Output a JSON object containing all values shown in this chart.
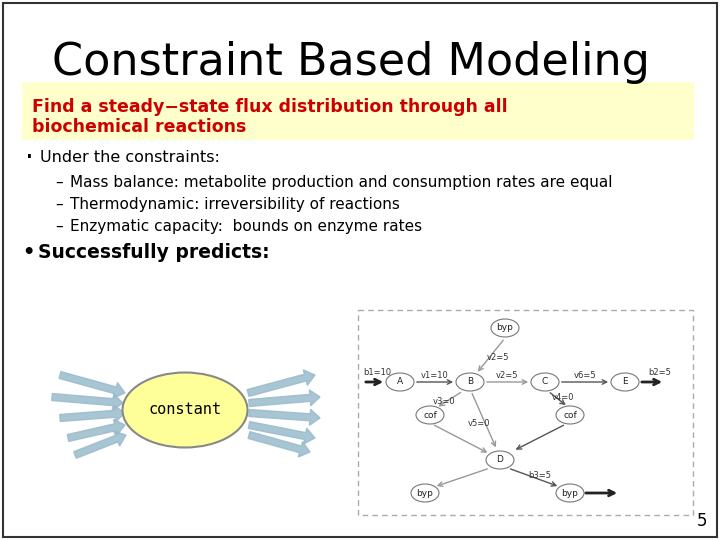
{
  "title": "Constraint Based Modeling",
  "title_fontsize": 32,
  "highlight_text_line1": "Find a steady−state flux distribution through all",
  "highlight_text_line2": "biochemical reactions",
  "highlight_bg": "#FFFFCC",
  "highlight_color": "#CC0000",
  "highlight_fontsize": 12.5,
  "bullet1": "Under the constraints:",
  "sub1": "Mass balance: metabolite production and consumption rates are equal",
  "sub2": "Thermodynamic: irreversibility of reactions",
  "sub3": "Enzymatic capacity:  bounds on enzyme rates",
  "bullet2": "Successfully predicts:",
  "page_num": "5",
  "bg_color": "#FFFFFF",
  "border_color": "#333333",
  "arrow_color": "#99BBCC",
  "arrow_color_dark": "#6699AA",
  "ellipse_color": "#FFFF99",
  "text_color": "#000000",
  "dash_color": "#AAAAAA",
  "node_ec": "#777777",
  "bullet_font": "DejaVu Sans",
  "sub_font": "DejaVu Sans",
  "mono_font": "DejaVu Sans Mono"
}
